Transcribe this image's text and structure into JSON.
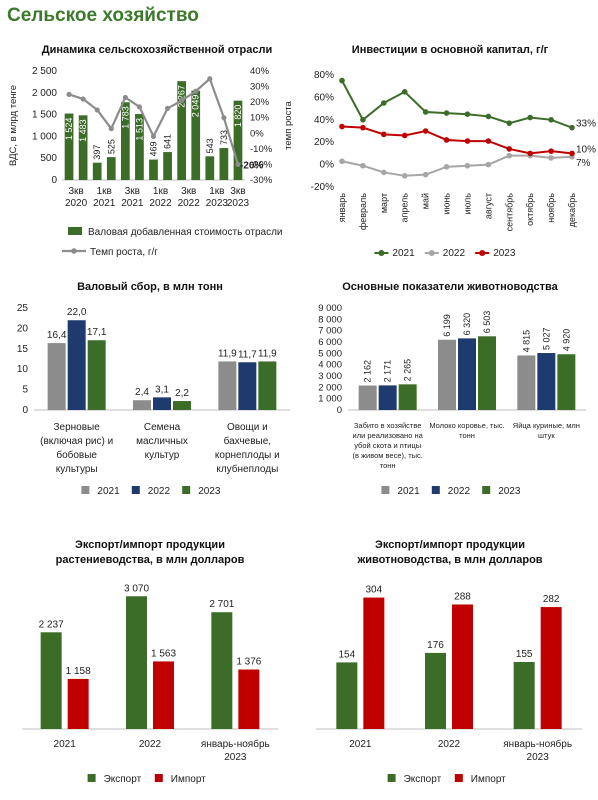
{
  "page": {
    "title": "Сельское хозяйство"
  },
  "colors": {
    "green_dark": "#3c6d28",
    "gray": "#8c8c8c",
    "navy": "#1f3a6e",
    "red": "#c00000",
    "title_green": "#3b7a2a"
  },
  "chart_data": [
    {
      "id": "gva",
      "type": "bar",
      "title": "Динамика сельскохозяйственной отрасли",
      "ylabel": "ВДС, в млрд тенге",
      "y2label": "темп роста",
      "ylim": [
        0,
        2500
      ],
      "y_ticks": [
        "0",
        "500",
        "1 000",
        "1 500",
        "2 000",
        "2 500"
      ],
      "y2lim": [
        -30,
        40
      ],
      "y2_ticks": [
        "-30%",
        "-20%",
        "-10%",
        "0%",
        "10%",
        "20%",
        "30%",
        "40%"
      ],
      "x_group_labels": [
        [
          "3кв",
          "2020"
        ],
        [
          "1кв",
          "2021"
        ],
        [
          "3кв",
          "2021"
        ],
        [
          "1кв",
          "2022"
        ],
        [
          "3кв",
          "2022"
        ],
        [
          "1кв",
          "2023"
        ],
        [
          "3кв",
          "2023"
        ]
      ],
      "series": [
        {
          "name": "Валовая добавленная стоимость отрасли",
          "kind": "bar",
          "color": "#3c6d28",
          "values": [
            1524,
            1483,
            397,
            525,
            1783,
            1513,
            469,
            641,
            2267,
            2049,
            543,
            733,
            1820
          ],
          "labels": [
            "1 524",
            "1 483",
            "397",
            "525",
            "1 783",
            "1 513",
            "469",
            "641",
            "2 267",
            "2 049",
            "543",
            "733",
            "1 820"
          ]
        },
        {
          "name": "Темп роста, г/г",
          "kind": "line",
          "color": "#8c8c8c",
          "values": [
            25,
            22,
            15,
            3,
            23,
            17,
            -2,
            16,
            21,
            27,
            35,
            10,
            -20
          ],
          "point_label": "-20%"
        }
      ]
    },
    {
      "id": "invest",
      "type": "line",
      "title": "Инвестиции в основной капитал, г/г",
      "ylim": [
        -20,
        80
      ],
      "y_ticks": [
        "-20%",
        "0%",
        "20%",
        "40%",
        "60%",
        "80%"
      ],
      "categories": [
        "январь",
        "февраль",
        "март",
        "апрель",
        "май",
        "июнь",
        "июль",
        "август",
        "сентябрь",
        "октябрь",
        "ноябрь",
        "декабрь"
      ],
      "series": [
        {
          "name": "2021",
          "color": "#3c6d28",
          "values": [
            75,
            40,
            55,
            65,
            47,
            46,
            45,
            43,
            37,
            42,
            40,
            33
          ],
          "end_label": "33%"
        },
        {
          "name": "2022",
          "color": "#a6a6a6",
          "values": [
            3,
            -1,
            -7,
            -10,
            -9,
            -2,
            -1,
            0,
            8,
            8,
            6,
            7
          ],
          "end_label": "7%"
        },
        {
          "name": "2023",
          "color": "#c00000",
          "values": [
            34,
            33,
            27,
            26,
            30,
            22,
            21,
            21,
            14,
            10,
            12,
            10
          ],
          "end_label": "10%"
        }
      ]
    },
    {
      "id": "harvest",
      "type": "bar",
      "title": "Валовый сбор, в млн тонн",
      "ylim": [
        0,
        25
      ],
      "y_ticks": [
        "0",
        "5",
        "10",
        "15",
        "20",
        "25"
      ],
      "categories": [
        [
          "Зерновые",
          "(включая рис) и",
          "бобовые",
          "культуры"
        ],
        [
          "Семена",
          "масличных",
          "культур"
        ],
        [
          "Овощи и",
          "бахчевые,",
          "корнеплоды и",
          "клубнеплоды"
        ]
      ],
      "series": [
        {
          "name": "2021",
          "color": "#8c8c8c",
          "values": [
            16.4,
            2.4,
            11.9
          ],
          "labels": [
            "16,4",
            "2,4",
            "11,9"
          ]
        },
        {
          "name": "2022",
          "color": "#1f3a6e",
          "values": [
            22.0,
            3.1,
            11.7
          ],
          "labels": [
            "22,0",
            "3,1",
            "11,7"
          ]
        },
        {
          "name": "2023",
          "color": "#3c6d28",
          "values": [
            17.1,
            2.2,
            11.9
          ],
          "labels": [
            "17,1",
            "2,2",
            "11,9"
          ]
        }
      ]
    },
    {
      "id": "livestock",
      "type": "bar",
      "title": "Основные показатели животноводства",
      "ylim": [
        0,
        9000
      ],
      "y_ticks": [
        "0",
        "1 000",
        "2 000",
        "3 000",
        "4 000",
        "5 000",
        "6 000",
        "7 000",
        "8 000",
        "9 000"
      ],
      "categories": [
        [
          "Забито в хозяйстве",
          "или реализовано на",
          "убой скота и птицы",
          "(в живом весе), тыс.",
          "тонн"
        ],
        [
          "Молоко коровье, тыс.",
          "тонн"
        ],
        [
          "Яйца куриные, млн",
          "штук"
        ]
      ],
      "series": [
        {
          "name": "2021",
          "color": "#8c8c8c",
          "values": [
            2162,
            6199,
            4815
          ],
          "labels": [
            "2 162",
            "6 199",
            "4 815"
          ]
        },
        {
          "name": "2022",
          "color": "#1f3a6e",
          "values": [
            2171,
            6320,
            5027
          ],
          "labels": [
            "2 171",
            "6 320",
            "5 027"
          ]
        },
        {
          "name": "2023",
          "color": "#3c6d28",
          "values": [
            2265,
            6503,
            4920
          ],
          "labels": [
            "2 265",
            "6 503",
            "4 920"
          ]
        }
      ]
    },
    {
      "id": "crop_trade",
      "type": "bar",
      "title": [
        "Экспорт/импорт продукции",
        "растениеводства, в млн долларов"
      ],
      "ylim": [
        0,
        3400
      ],
      "categories": [
        [
          "2021"
        ],
        [
          "2022"
        ],
        [
          "январь-ноябрь",
          "2023"
        ]
      ],
      "series": [
        {
          "name": "Экспорт",
          "color": "#3c6d28",
          "values": [
            2237,
            3070,
            2701
          ],
          "labels": [
            "2 237",
            "3 070",
            "2 701"
          ]
        },
        {
          "name": "Импорт",
          "color": "#c00000",
          "values": [
            1158,
            1563,
            1376
          ],
          "labels": [
            "1 158",
            "1 563",
            "1 376"
          ]
        }
      ]
    },
    {
      "id": "animal_trade",
      "type": "bar",
      "title": [
        "Экспорт/импорт продукции",
        "животноводства, в млн долларов"
      ],
      "ylim": [
        0,
        340
      ],
      "categories": [
        [
          "2021"
        ],
        [
          "2022"
        ],
        [
          "январь-ноябрь",
          "2023"
        ]
      ],
      "series": [
        {
          "name": "Экспорт",
          "color": "#3c6d28",
          "values": [
            154,
            176,
            155
          ],
          "labels": [
            "154",
            "176",
            "155"
          ]
        },
        {
          "name": "Импорт",
          "color": "#c00000",
          "values": [
            304,
            288,
            282
          ],
          "labels": [
            "304",
            "288",
            "282"
          ]
        }
      ]
    }
  ]
}
